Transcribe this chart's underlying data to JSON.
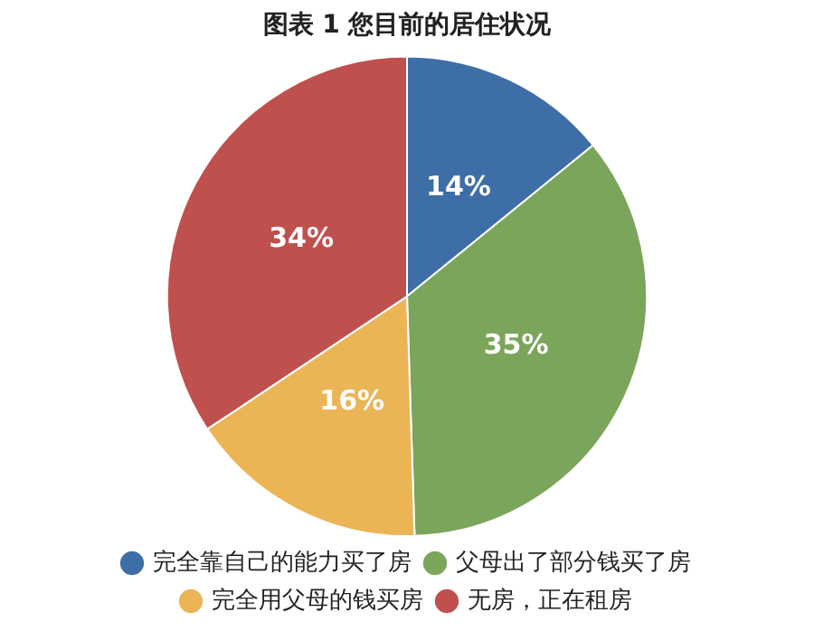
{
  "chart_data": {
    "type": "pie",
    "title": "图表 1 您目前的居住状况",
    "categories": [
      "完全靠自己的能力买了房",
      "父母出了部分钱买了房",
      "完全用父母的钱买房",
      "无房，正在租房"
    ],
    "values": [
      14,
      35,
      16,
      34
    ],
    "colors": [
      "#3d6ea8",
      "#7ba55a",
      "#ebb556",
      "#c0504d"
    ],
    "value_labels": [
      "14%",
      "35%",
      "16%",
      "34%"
    ],
    "legend": "bottom"
  }
}
